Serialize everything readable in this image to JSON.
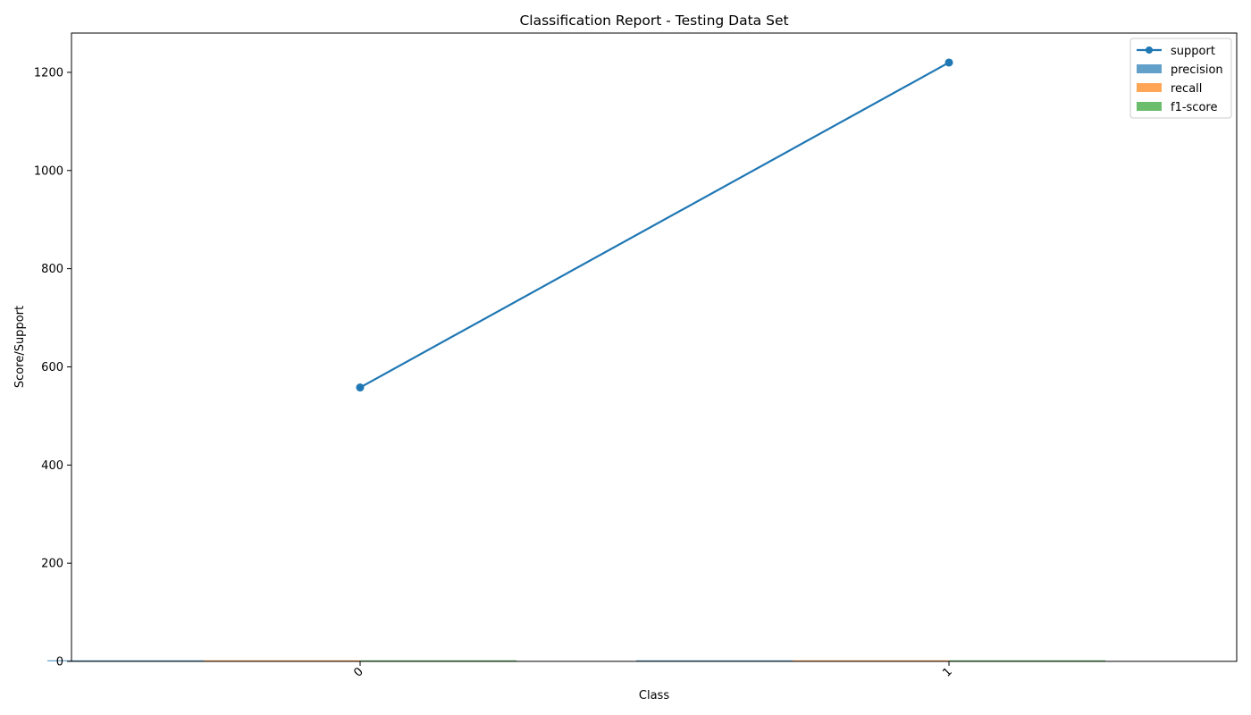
{
  "chart_data": {
    "type": "bar",
    "title": "Classification Report - Testing Data Set",
    "xlabel": "Class",
    "ylabel": "Score/Support",
    "categories": [
      "0",
      "1"
    ],
    "ylim": [
      0,
      1280
    ],
    "yticks": [
      0,
      200,
      400,
      600,
      800,
      1000,
      1200
    ],
    "grid": false,
    "legend_position": "top-right",
    "series": [
      {
        "name": "support",
        "kind": "line",
        "color": "#1f77b4",
        "values": [
          558,
          1220
        ]
      },
      {
        "name": "precision",
        "kind": "bar",
        "color": "#1f77b4",
        "alpha": 0.7,
        "values": [
          0.85,
          0.9
        ]
      },
      {
        "name": "recall",
        "kind": "bar",
        "color": "#ff7f0e",
        "alpha": 0.7,
        "values": [
          0.8,
          0.93
        ]
      },
      {
        "name": "f1-score",
        "kind": "bar",
        "color": "#2ca02c",
        "alpha": 0.7,
        "values": [
          0.82,
          0.91
        ]
      }
    ]
  }
}
